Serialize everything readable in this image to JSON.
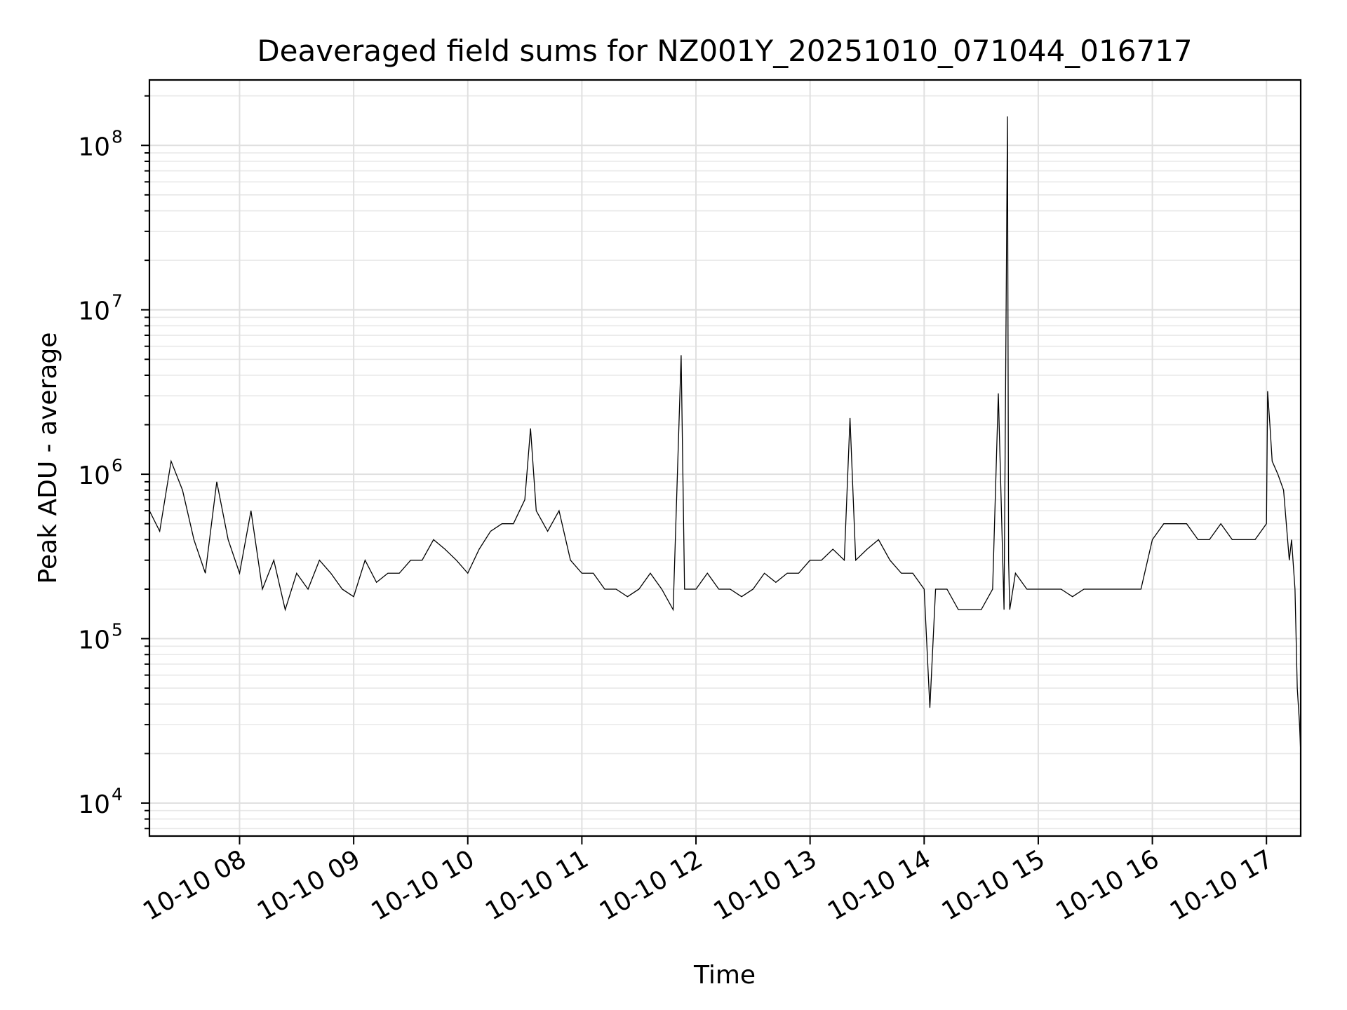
{
  "chart_data": {
    "type": "line",
    "title": "Deaveraged field sums for NZ001Y_20251010_071044_016717",
    "xlabel": "Time",
    "ylabel": "Peak ADU - average",
    "yscale": "log",
    "ylim": [
      6300,
      250000000
    ],
    "xlim_hours": [
      7.21,
      17.3
    ],
    "grid": true,
    "y_ticks": [
      {
        "value": 10000,
        "base": "10",
        "exp": "4"
      },
      {
        "value": 100000,
        "base": "10",
        "exp": "5"
      },
      {
        "value": 1000000,
        "base": "10",
        "exp": "6"
      },
      {
        "value": 10000000,
        "base": "10",
        "exp": "7"
      },
      {
        "value": 100000000,
        "base": "10",
        "exp": "8"
      }
    ],
    "x_ticks": [
      {
        "hour": 8,
        "label": "10-10 08"
      },
      {
        "hour": 9,
        "label": "10-10 09"
      },
      {
        "hour": 10,
        "label": "10-10 10"
      },
      {
        "hour": 11,
        "label": "10-10 11"
      },
      {
        "hour": 12,
        "label": "10-10 12"
      },
      {
        "hour": 13,
        "label": "10-10 13"
      },
      {
        "hour": 14,
        "label": "10-10 14"
      },
      {
        "hour": 15,
        "label": "10-10 15"
      },
      {
        "hour": 16,
        "label": "10-10 16"
      },
      {
        "hour": 17,
        "label": "10-10 17"
      }
    ],
    "series": [
      {
        "name": "Deaveraged field sum",
        "color": "#000000",
        "x_hours": [
          7.21,
          7.3,
          7.4,
          7.5,
          7.6,
          7.7,
          7.8,
          7.9,
          8.0,
          8.1,
          8.2,
          8.3,
          8.4,
          8.5,
          8.6,
          8.7,
          8.8,
          8.9,
          9.0,
          9.1,
          9.2,
          9.3,
          9.4,
          9.5,
          9.6,
          9.7,
          9.8,
          9.9,
          10.0,
          10.1,
          10.2,
          10.3,
          10.4,
          10.5,
          10.55,
          10.6,
          10.7,
          10.8,
          10.9,
          11.0,
          11.1,
          11.2,
          11.3,
          11.4,
          11.5,
          11.6,
          11.7,
          11.8,
          11.87,
          11.9,
          12.0,
          12.1,
          12.2,
          12.3,
          12.4,
          12.5,
          12.6,
          12.7,
          12.8,
          12.9,
          13.0,
          13.1,
          13.2,
          13.3,
          13.35,
          13.4,
          13.5,
          13.6,
          13.7,
          13.8,
          13.9,
          14.0,
          14.05,
          14.1,
          14.2,
          14.3,
          14.4,
          14.5,
          14.6,
          14.65,
          14.7,
          14.73,
          14.74,
          14.75,
          14.8,
          14.9,
          15.0,
          15.1,
          15.2,
          15.3,
          15.4,
          15.5,
          15.6,
          15.7,
          15.8,
          15.9,
          16.0,
          16.1,
          16.2,
          16.3,
          16.4,
          16.5,
          16.6,
          16.7,
          16.8,
          16.9,
          17.0,
          17.01,
          17.03,
          17.05,
          17.1,
          17.15,
          17.2,
          17.22,
          17.25,
          17.27,
          17.29,
          17.3
        ],
        "y": [
          600000,
          450000,
          1200000,
          800000,
          400000,
          250000,
          900000,
          400000,
          250000,
          600000,
          200000,
          300000,
          150000,
          250000,
          200000,
          300000,
          250000,
          200000,
          180000,
          300000,
          220000,
          250000,
          250000,
          300000,
          300000,
          400000,
          350000,
          300000,
          250000,
          350000,
          450000,
          500000,
          500000,
          700000,
          1900000,
          600000,
          450000,
          600000,
          300000,
          250000,
          250000,
          200000,
          200000,
          180000,
          200000,
          250000,
          200000,
          150000,
          5300000,
          200000,
          200000,
          250000,
          200000,
          200000,
          180000,
          200000,
          250000,
          220000,
          250000,
          250000,
          300000,
          300000,
          350000,
          300000,
          2200000,
          300000,
          350000,
          400000,
          300000,
          250000,
          250000,
          200000,
          38000,
          200000,
          200000,
          150000,
          150000,
          150000,
          200000,
          3100000,
          150000,
          150000000,
          300000,
          150000,
          250000,
          200000,
          200000,
          200000,
          200000,
          180000,
          200000,
          200000,
          200000,
          200000,
          200000,
          200000,
          400000,
          500000,
          500000,
          500000,
          400000,
          400000,
          500000,
          400000,
          400000,
          400000,
          500000,
          3200000,
          2000000,
          1200000,
          1000000,
          800000,
          300000,
          400000,
          200000,
          50000,
          30000,
          20000
        ]
      }
    ]
  }
}
